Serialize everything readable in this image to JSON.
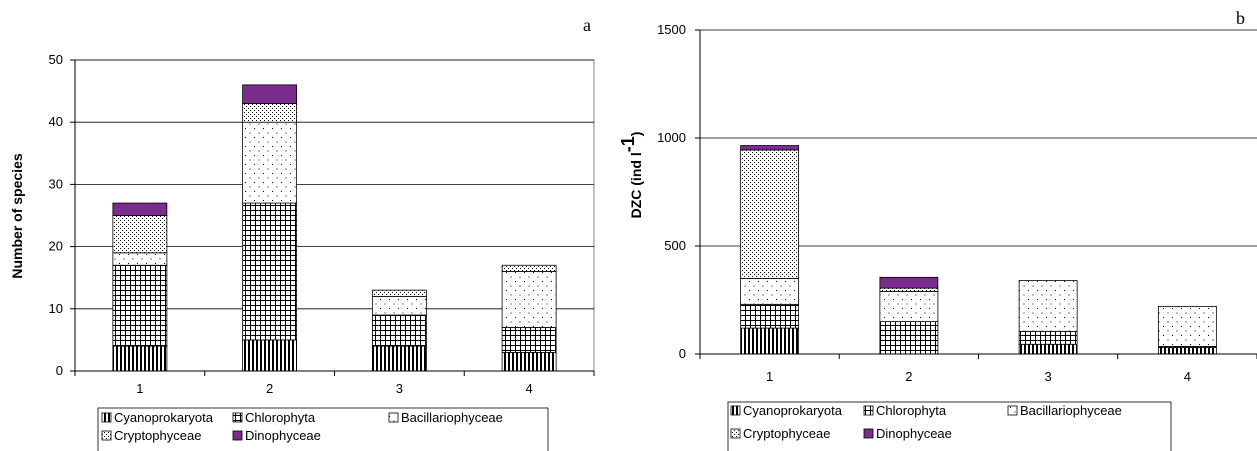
{
  "colors": {
    "Cyanoprokaryota": "#000000",
    "Chlorophyta": "#000000",
    "Bacillariophyceae": "#ffffff",
    "Cryptophyceae": "#ffffff",
    "Dinophyceae": "#7b2d8e"
  },
  "chart_data": [
    {
      "type": "bar",
      "stacked": true,
      "panel_label": "a",
      "title": "",
      "xlabel": "",
      "ylabel": "Number of species",
      "categories": [
        "1",
        "2",
        "3",
        "4"
      ],
      "ylim": [
        0,
        50
      ],
      "yticks": [
        0,
        10,
        20,
        30,
        40,
        50
      ],
      "grid": true,
      "legend_position": "bottom",
      "series": [
        {
          "name": "Cyanoprokaryota",
          "values": [
            4,
            5,
            4,
            3
          ]
        },
        {
          "name": "Chlorophyta",
          "values": [
            13,
            22,
            5,
            4
          ]
        },
        {
          "name": "Bacillariophyceae",
          "values": [
            2,
            13,
            3,
            9
          ]
        },
        {
          "name": "Cryptophyceae",
          "values": [
            6,
            3,
            1,
            1
          ]
        },
        {
          "name": "Dinophyceae",
          "values": [
            2,
            3,
            0,
            0
          ]
        }
      ]
    },
    {
      "type": "bar",
      "stacked": true,
      "panel_label": "b",
      "title": "",
      "xlabel": "",
      "ylabel": "DZC (ind l-1)",
      "ylabel_main": "DZC (ind l",
      "ylabel_sup": "-1",
      "ylabel_tail": ")",
      "categories": [
        "1",
        "2",
        "3",
        "4"
      ],
      "ylim": [
        0,
        1500
      ],
      "yticks": [
        0,
        500,
        1000,
        1500
      ],
      "grid": true,
      "legend_position": "bottom",
      "series": [
        {
          "name": "Cyanoprokaryota",
          "values": [
            120,
            0,
            45,
            30
          ]
        },
        {
          "name": "Chlorophyta",
          "values": [
            110,
            150,
            60,
            5
          ]
        },
        {
          "name": "Bacillariophyceae",
          "values": [
            120,
            140,
            235,
            185
          ]
        },
        {
          "name": "Cryptophyceae",
          "values": [
            595,
            15,
            0,
            0
          ]
        },
        {
          "name": "Dinophyceae",
          "values": [
            20,
            50,
            0,
            0
          ]
        }
      ]
    }
  ]
}
